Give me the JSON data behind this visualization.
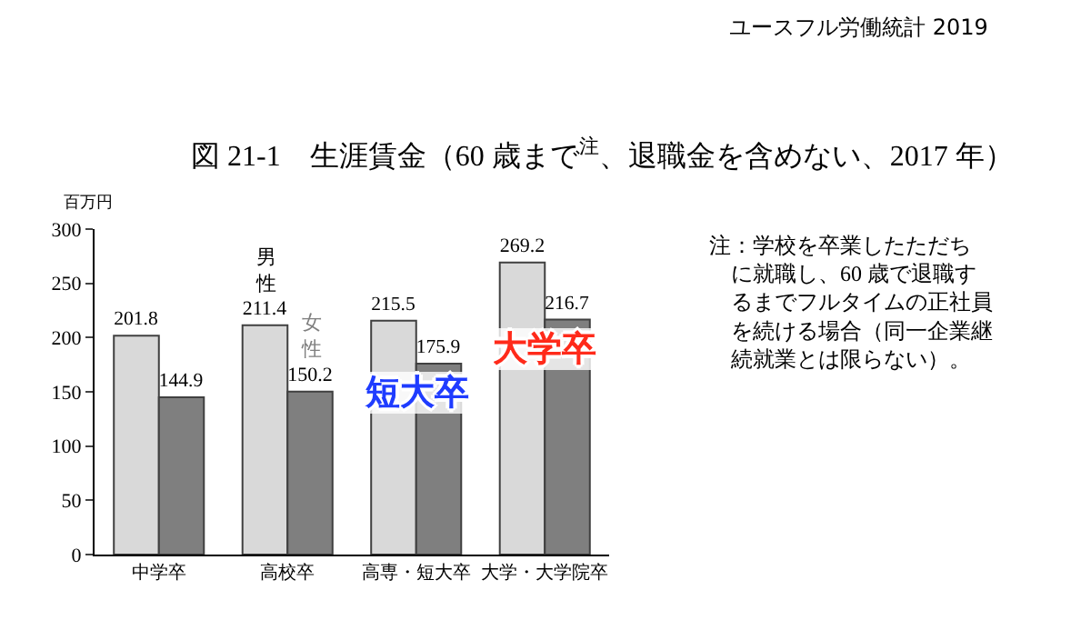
{
  "chart_data": {
    "type": "bar",
    "title": "図 21-1　生涯賃金（60 歳まで$^{注}$、退職金を含めない、2017 年）",
    "ylabel": "百万円",
    "categories": [
      "中学卒",
      "高校卒",
      "高専・短大卒",
      "大学・大学院卒"
    ],
    "series": [
      {
        "name": "男性",
        "color": "#d9d9d9",
        "values": [
          201.8,
          211.4,
          215.5,
          269.2
        ]
      },
      {
        "name": "女性",
        "color": "#7f7f7f",
        "values": [
          144.9,
          150.2,
          175.9,
          216.7
        ]
      }
    ],
    "ylim": [
      0,
      300
    ],
    "yticks": [
      0,
      50,
      100,
      150,
      200,
      250,
      300
    ],
    "grid": false,
    "legend": false,
    "data_labels": true,
    "annotations": [
      "ユースフル労働統計 2019",
      "注：学校を卒業したただちに就職し、60 歳で退職するまでフルタイムの正社員を続ける場合（同一企業継続就業とは限らない）。",
      {
        "text": "短大卒",
        "x": "高専・短大卒",
        "y": 150
      },
      {
        "text": "大学卒",
        "x": "大学・大学院卒",
        "y": 190
      }
    ]
  }
}
